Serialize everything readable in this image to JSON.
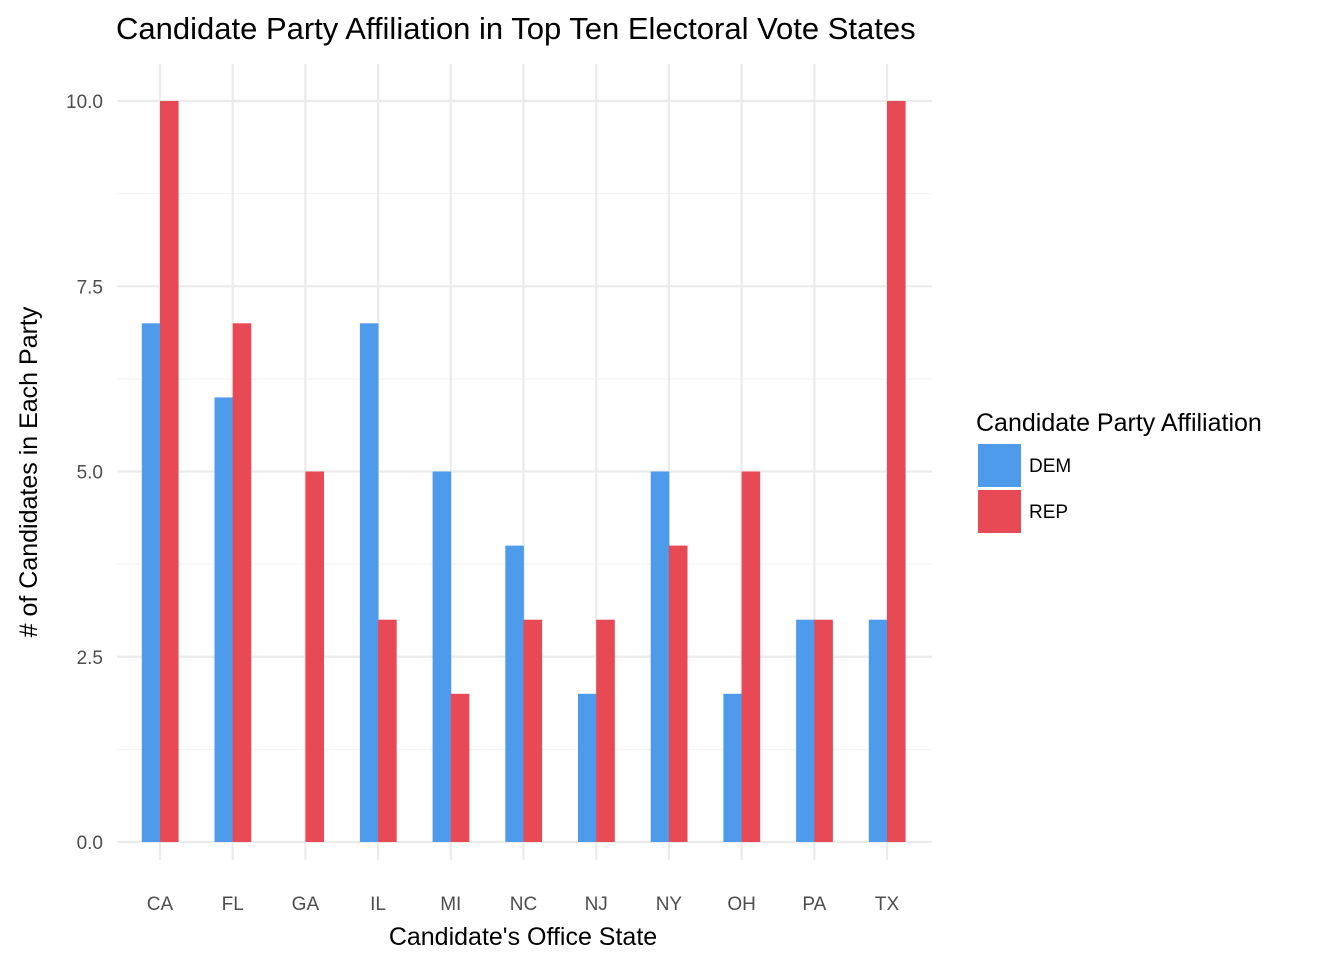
{
  "chart_data": {
    "type": "bar",
    "title": "Candidate Party Affiliation in Top Ten Electoral Vote States",
    "xlabel": "Candidate's Office State",
    "ylabel": "# of Candidates in Each Party",
    "categories": [
      "CA",
      "FL",
      "GA",
      "IL",
      "MI",
      "NC",
      "NJ",
      "NY",
      "OH",
      "PA",
      "TX"
    ],
    "series": [
      {
        "name": "DEM",
        "color": "#4f9beb",
        "values": [
          7,
          6,
          0,
          7,
          5,
          4,
          2,
          5,
          2,
          3,
          3
        ]
      },
      {
        "name": "REP",
        "color": "#e84a55",
        "values": [
          10,
          7,
          5,
          3,
          2,
          3,
          3,
          4,
          5,
          3,
          10
        ]
      }
    ],
    "ylim": [
      0,
      10
    ],
    "yticks": [
      "0.0",
      "2.5",
      "5.0",
      "7.5",
      "10.0"
    ],
    "ytick_values": [
      0,
      2.5,
      5,
      7.5,
      10
    ],
    "grid": true,
    "legend": {
      "title": "Candidate Party Affiliation",
      "position": "right"
    }
  }
}
